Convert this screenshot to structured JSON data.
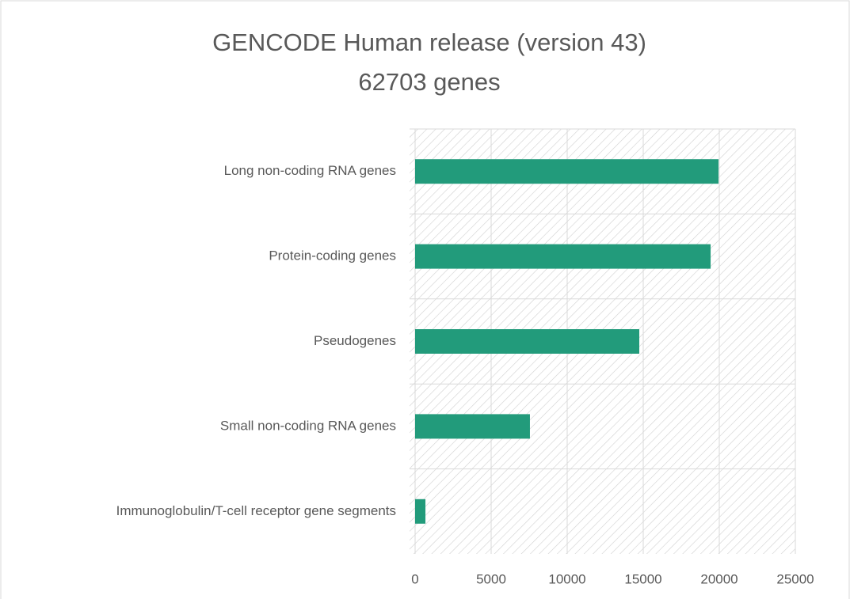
{
  "chart_data": {
    "type": "bar",
    "orientation": "horizontal",
    "title": "GENCODE Human release (version 43)",
    "subtitle": "62703 genes",
    "categories": [
      "Long non-coding RNA genes",
      "Protein-coding genes",
      "Pseudogenes",
      "Small non-coding RNA genes",
      "Immunoglobulin/T-cell receptor gene segments"
    ],
    "values": [
      19950,
      19430,
      14740,
      7550,
      680
    ],
    "color": "#229b7b",
    "xlim": [
      0,
      25000
    ],
    "xticks": [
      0,
      5000,
      10000,
      15000,
      20000,
      25000
    ],
    "grid": true
  }
}
